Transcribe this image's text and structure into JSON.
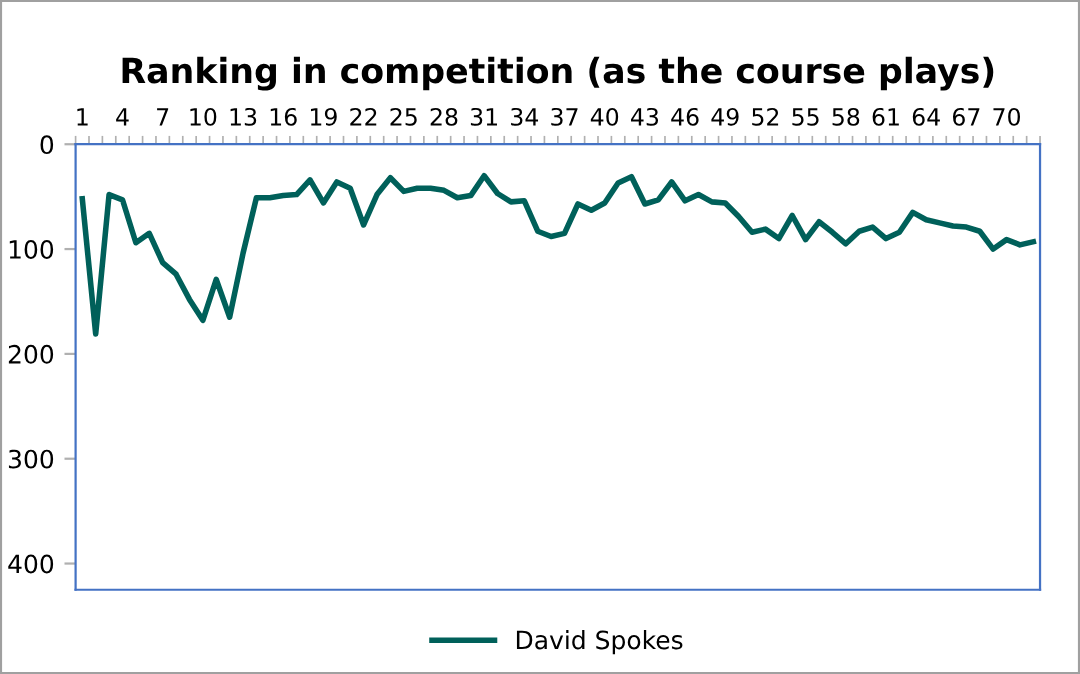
{
  "chart_data": {
    "type": "line",
    "title": "Ranking in competition (as the course plays)",
    "categories": [
      "1",
      null,
      null,
      "4",
      null,
      null,
      "7",
      null,
      null,
      "10",
      null,
      null,
      "13",
      null,
      null,
      "16",
      null,
      null,
      "19",
      null,
      null,
      "22",
      null,
      null,
      "25",
      null,
      null,
      "28",
      null,
      null,
      "31",
      null,
      null,
      "34",
      null,
      null,
      "37",
      null,
      null,
      "40",
      null,
      null,
      "43",
      null,
      null,
      "46",
      null,
      null,
      "49",
      null,
      null,
      "52",
      null,
      null,
      "55",
      null,
      null,
      "58",
      null,
      null,
      "61",
      null,
      null,
      "64",
      null,
      null,
      "67",
      null,
      null,
      "70",
      null,
      null
    ],
    "series": [
      {
        "name": "David Spokes",
        "color": "#00605a",
        "values": [
          52,
          181,
          48,
          53,
          94,
          85,
          113,
          124,
          148,
          168,
          129,
          165,
          104,
          51,
          51,
          49,
          48,
          34,
          56,
          36,
          42,
          77,
          48,
          32,
          45,
          42,
          42,
          44,
          51,
          49,
          30,
          47,
          55,
          54,
          83,
          88,
          85,
          57,
          63,
          56,
          37,
          31,
          57,
          53,
          36,
          54,
          48,
          55,
          56,
          69,
          84,
          81,
          90,
          68,
          91,
          74,
          84,
          95,
          83,
          79,
          90,
          84,
          65,
          72,
          75,
          78,
          79,
          83,
          100,
          91,
          96,
          93
        ]
      }
    ],
    "ylim": [
      425,
      0
    ],
    "yticks": [
      0,
      100,
      200,
      300,
      400
    ],
    "grid": false,
    "legend": "bottom",
    "marker": "none",
    "line_style": "solid"
  }
}
